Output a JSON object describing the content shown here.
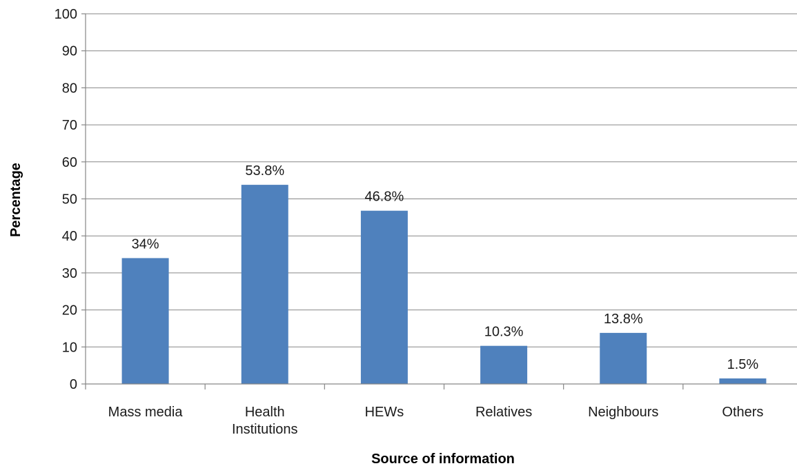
{
  "chart_data": {
    "type": "bar",
    "title": "",
    "xlabel": "Source of information",
    "ylabel": "Percentage",
    "ylim": [
      0,
      100
    ],
    "yticks": [
      0,
      10,
      20,
      30,
      40,
      50,
      60,
      70,
      80,
      90,
      100
    ],
    "categories": [
      [
        "Mass media"
      ],
      [
        "Health",
        "Institutions"
      ],
      [
        "HEWs"
      ],
      [
        "Relatives"
      ],
      [
        "Neighbours"
      ],
      [
        "Others"
      ]
    ],
    "values": [
      34,
      53.8,
      46.8,
      10.3,
      13.8,
      1.5
    ],
    "data_labels": [
      "34%",
      "53.8%",
      "46.8%",
      "10.3%",
      "13.8%",
      "1.5%"
    ],
    "grid": true,
    "legend": "none",
    "bar_color": "#4f81bd"
  }
}
